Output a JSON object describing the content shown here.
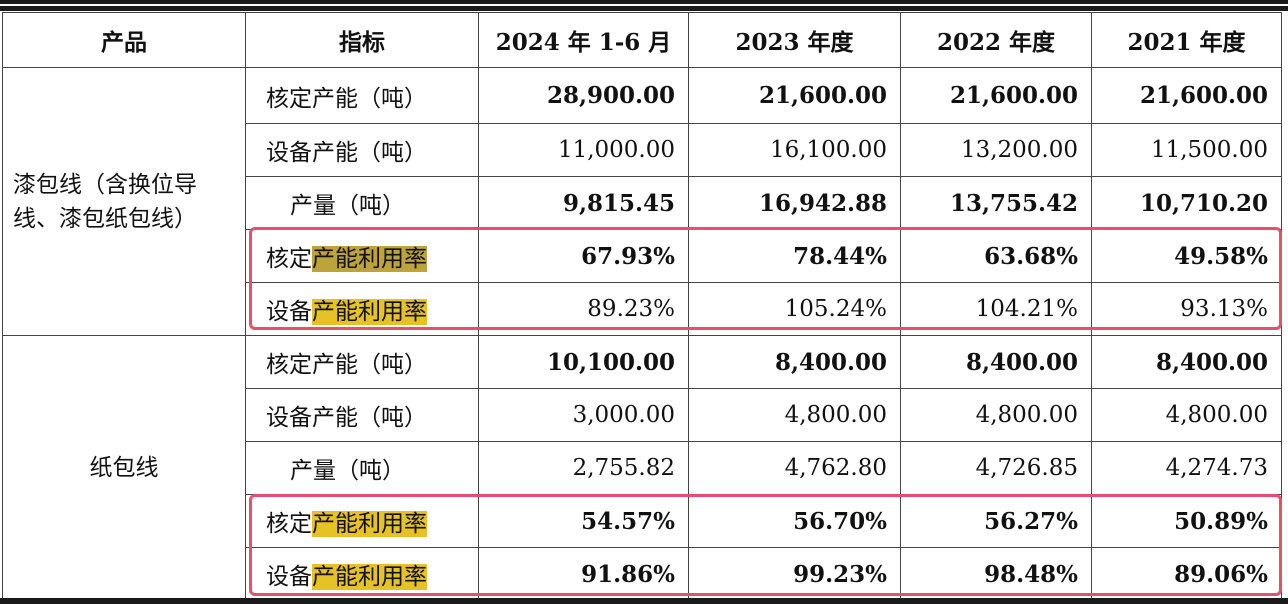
{
  "table": {
    "headers": [
      "产品",
      "指标",
      "2024 年 1-6 月",
      "2023 年度",
      "2022 年度",
      "2021 年度"
    ],
    "groups": [
      {
        "product": "漆包线（含换位导线、漆包纸包线）",
        "rows": [
          {
            "prefix": "核定产能（吨）",
            "highlight": "",
            "values": [
              "28,900.00",
              "21,600.00",
              "21,600.00",
              "21,600.00"
            ],
            "bold": true
          },
          {
            "prefix": "设备产能（吨）",
            "highlight": "",
            "values": [
              "11,000.00",
              "16,100.00",
              "13,200.00",
              "11,500.00"
            ],
            "bold": false
          },
          {
            "prefix": "产量（吨）",
            "highlight": "",
            "values": [
              "9,815.45",
              "16,942.88",
              "13,755.42",
              "10,710.20"
            ],
            "bold": true
          },
          {
            "prefix": "核定",
            "highlight": "产能利用率",
            "values": [
              "67.93%",
              "78.44%",
              "63.68%",
              "49.58%"
            ],
            "bold": true
          },
          {
            "prefix": "设备",
            "highlight": "产能利用率",
            "values": [
              "89.23%",
              "105.24%",
              "104.21%",
              "93.13%"
            ],
            "bold": false
          }
        ]
      },
      {
        "product": "纸包线",
        "rows": [
          {
            "prefix": "核定产能（吨）",
            "highlight": "",
            "values": [
              "10,100.00",
              "8,400.00",
              "8,400.00",
              "8,400.00"
            ],
            "bold": true
          },
          {
            "prefix": "设备产能（吨）",
            "highlight": "",
            "values": [
              "3,000.00",
              "4,800.00",
              "4,800.00",
              "4,800.00"
            ],
            "bold": false
          },
          {
            "prefix": "产量（吨）",
            "highlight": "",
            "values": [
              "2,755.82",
              "4,762.80",
              "4,726.85",
              "4,274.73"
            ],
            "bold": false
          },
          {
            "prefix": "核定",
            "highlight": "产能利用率",
            "values": [
              "54.57%",
              "56.70%",
              "56.27%",
              "50.89%"
            ],
            "bold": true
          },
          {
            "prefix": "设备",
            "highlight": "产能利用率",
            "values": [
              "91.86%",
              "99.23%",
              "98.48%",
              "89.06%"
            ],
            "bold": true
          }
        ]
      }
    ]
  },
  "colors": {
    "highlight": "#e7c227",
    "highlight_selected": "#bda43a",
    "annotation_box": "#e7506a"
  }
}
